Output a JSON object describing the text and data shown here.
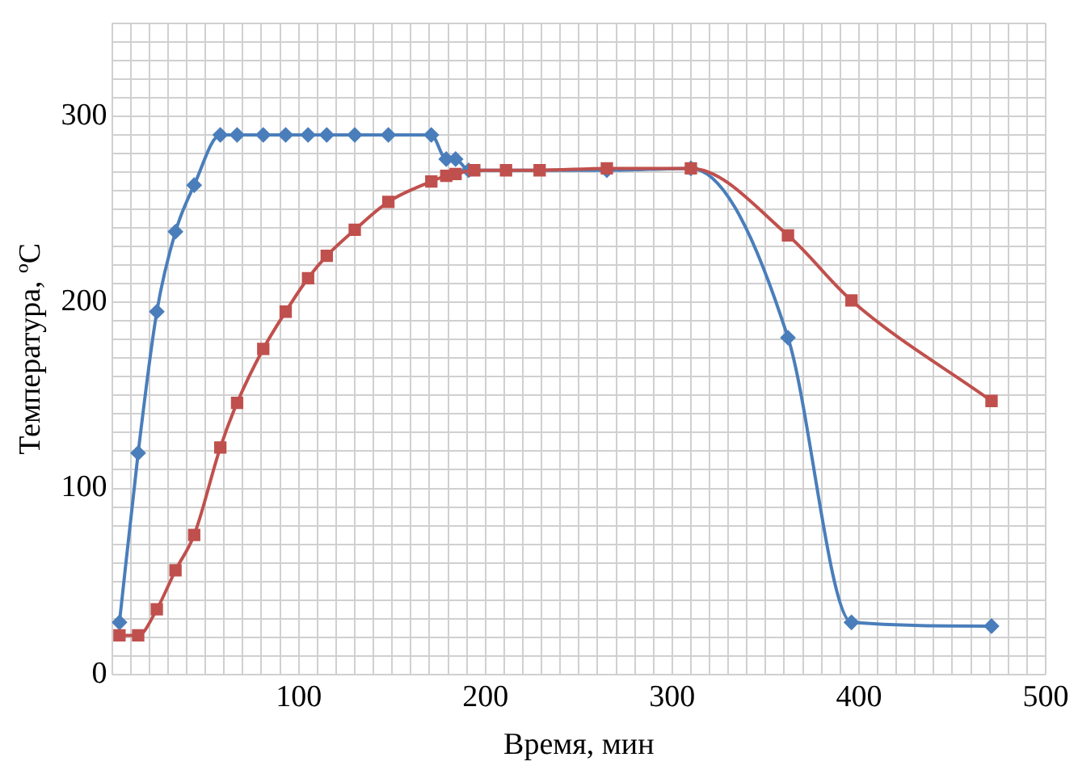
{
  "chart_data": {
    "type": "line",
    "xlabel": "Время, мин",
    "ylabel": "Температура, ºС",
    "xlim": [
      0,
      500
    ],
    "ylim": [
      0,
      350
    ],
    "xticks": [
      {
        "value": 0,
        "label": null
      },
      {
        "value": 10,
        "label": null
      },
      {
        "value": 20,
        "label": null
      },
      {
        "value": 30,
        "label": null
      },
      {
        "value": 40,
        "label": null
      },
      {
        "value": 50,
        "label": null
      },
      {
        "value": 60,
        "label": null
      },
      {
        "value": 70,
        "label": null
      },
      {
        "value": 80,
        "label": null
      },
      {
        "value": 90,
        "label": null
      },
      100,
      {
        "value": 110,
        "label": null
      },
      {
        "value": 120,
        "label": null
      },
      {
        "value": 130,
        "label": null
      },
      {
        "value": 140,
        "label": null
      },
      {
        "value": 150,
        "label": null
      },
      {
        "value": 160,
        "label": null
      },
      {
        "value": 170,
        "label": null
      },
      {
        "value": 180,
        "label": null
      },
      {
        "value": 190,
        "label": null
      },
      200,
      {
        "value": 210,
        "label": null
      },
      {
        "value": 220,
        "label": null
      },
      {
        "value": 230,
        "label": null
      },
      {
        "value": 240,
        "label": null
      },
      {
        "value": 250,
        "label": null
      },
      {
        "value": 260,
        "label": null
      },
      {
        "value": 270,
        "label": null
      },
      {
        "value": 280,
        "label": null
      },
      {
        "value": 290,
        "label": null
      },
      300,
      {
        "value": 310,
        "label": null
      },
      {
        "value": 320,
        "label": null
      },
      {
        "value": 330,
        "label": null
      },
      {
        "value": 340,
        "label": null
      },
      {
        "value": 350,
        "label": null
      },
      {
        "value": 360,
        "label": null
      },
      {
        "value": 370,
        "label": null
      },
      {
        "value": 380,
        "label": null
      },
      {
        "value": 390,
        "label": null
      },
      400,
      {
        "value": 410,
        "label": null
      },
      {
        "value": 420,
        "label": null
      },
      {
        "value": 430,
        "label": null
      },
      {
        "value": 440,
        "label": null
      },
      {
        "value": 450,
        "label": null
      },
      {
        "value": 460,
        "label": null
      },
      {
        "value": 470,
        "label": null
      },
      {
        "value": 480,
        "label": null
      },
      {
        "value": 490,
        "label": null
      },
      500
    ],
    "yticks": [
      0,
      {
        "value": 10,
        "label": null
      },
      {
        "value": 20,
        "label": null
      },
      {
        "value": 30,
        "label": null
      },
      {
        "value": 40,
        "label": null
      },
      {
        "value": 50,
        "label": null
      },
      {
        "value": 60,
        "label": null
      },
      {
        "value": 70,
        "label": null
      },
      {
        "value": 80,
        "label": null
      },
      {
        "value": 90,
        "label": null
      },
      100,
      {
        "value": 110,
        "label": null
      },
      {
        "value": 120,
        "label": null
      },
      {
        "value": 130,
        "label": null
      },
      {
        "value": 140,
        "label": null
      },
      {
        "value": 150,
        "label": null
      },
      {
        "value": 160,
        "label": null
      },
      {
        "value": 170,
        "label": null
      },
      {
        "value": 180,
        "label": null
      },
      {
        "value": 190,
        "label": null
      },
      200,
      {
        "value": 210,
        "label": null
      },
      {
        "value": 220,
        "label": null
      },
      {
        "value": 230,
        "label": null
      },
      {
        "value": 240,
        "label": null
      },
      {
        "value": 250,
        "label": null
      },
      {
        "value": 260,
        "label": null
      },
      {
        "value": 270,
        "label": null
      },
      {
        "value": 280,
        "label": null
      },
      {
        "value": 290,
        "label": null
      },
      300,
      {
        "value": 310,
        "label": null
      },
      {
        "value": 320,
        "label": null
      },
      {
        "value": 330,
        "label": null
      },
      {
        "value": 340,
        "label": null
      },
      {
        "value": 350,
        "label": null
      }
    ],
    "grid": true,
    "line_style": "solid",
    "series": [
      {
        "color": "#4a7ebb",
        "marker": "diamond",
        "x": [
          4,
          14,
          24,
          34,
          44,
          58,
          67,
          81,
          93,
          105,
          115,
          130,
          148,
          171,
          179,
          184,
          191,
          265,
          310,
          362,
          396,
          471
        ],
        "values": [
          28,
          119,
          195,
          238,
          263,
          290,
          290,
          290,
          290,
          290,
          290,
          290,
          290,
          290,
          277,
          277,
          271,
          271,
          272,
          181,
          28,
          26
        ]
      },
      {
        "color": "#c0504d",
        "marker": "square",
        "x": [
          4,
          14,
          24,
          34,
          44,
          58,
          67,
          81,
          93,
          105,
          115,
          130,
          148,
          171,
          179,
          184,
          194,
          211,
          229,
          265,
          310,
          362,
          396,
          471
        ],
        "values": [
          21,
          21,
          35,
          56,
          75,
          122,
          146,
          175,
          195,
          213,
          225,
          239,
          254,
          265,
          268,
          269,
          271,
          271,
          271,
          272,
          272,
          236,
          201,
          147
        ]
      }
    ]
  }
}
